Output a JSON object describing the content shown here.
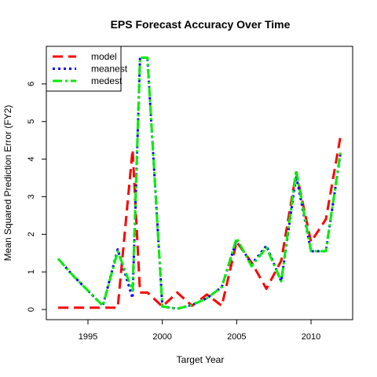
{
  "chart_data": {
    "type": "line",
    "title": "EPS Forecast Accuracy Over Time",
    "xlabel": "Target Year",
    "ylabel": "Mean Squared Prediction Error (FY2)",
    "xlim": [
      1992.2,
      2012.8
    ],
    "ylim": [
      -0.27,
      7.0
    ],
    "xticks": [
      1995,
      2000,
      2005,
      2010
    ],
    "yticks": [
      0,
      1,
      2,
      3,
      4,
      5,
      6
    ],
    "legend_position": "top-left",
    "x": [
      1993,
      1994,
      1995,
      1996,
      1997,
      1998,
      1998.5,
      1999,
      2000,
      2001,
      2002,
      2003,
      2004,
      2005,
      2006,
      2007,
      2008,
      2009,
      2010,
      2011,
      2012
    ],
    "series": [
      {
        "name": "model",
        "color": "#ff0000",
        "dash": "long",
        "values": [
          0.05,
          0.05,
          0.05,
          0.05,
          0.05,
          4.25,
          0.45,
          0.45,
          0.08,
          0.45,
          0.1,
          0.4,
          0.1,
          1.8,
          1.25,
          0.55,
          1.3,
          3.65,
          1.8,
          2.4,
          4.65
        ]
      },
      {
        "name": "meanest",
        "color": "#0000ff",
        "dash": "dotted",
        "values": [
          1.35,
          0.9,
          0.5,
          0.1,
          1.6,
          0.3,
          6.7,
          6.7,
          0.08,
          0.02,
          0.12,
          0.3,
          0.6,
          1.85,
          1.2,
          1.7,
          0.75,
          3.55,
          1.55,
          1.55,
          4.2
        ]
      },
      {
        "name": "medest",
        "color": "#00ee00",
        "dash": "dashdot",
        "values": [
          1.35,
          0.9,
          0.5,
          0.1,
          1.55,
          0.5,
          6.7,
          6.7,
          0.08,
          0.02,
          0.12,
          0.3,
          0.6,
          1.9,
          1.15,
          1.65,
          0.75,
          3.7,
          1.55,
          1.55,
          4.25
        ]
      }
    ]
  }
}
